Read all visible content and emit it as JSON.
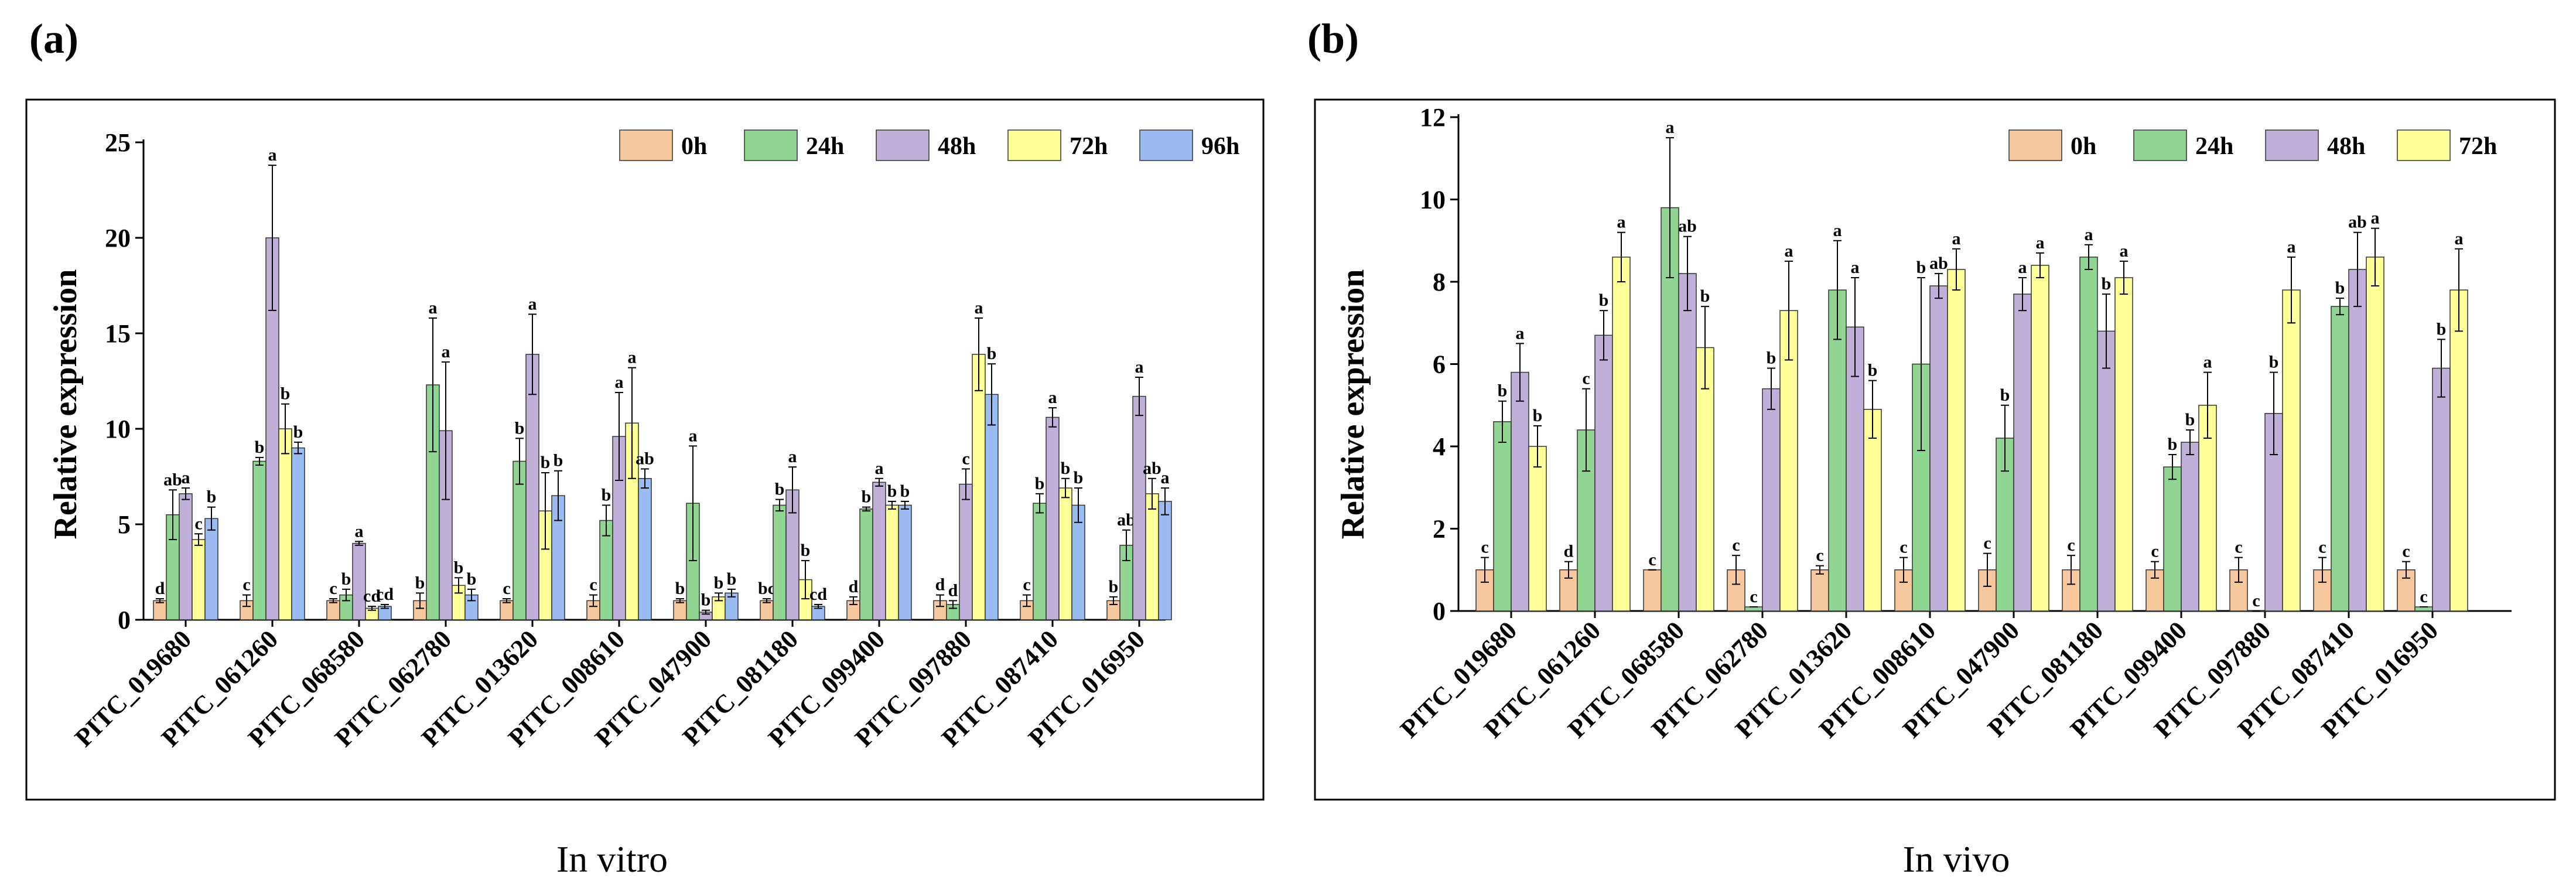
{
  "panels": [
    {
      "letter": "(a)",
      "caption": "In vitro",
      "ylabel": "Relative expression"
    },
    {
      "letter": "(b)",
      "caption": "In vivo",
      "ylabel": "Relative expression"
    }
  ],
  "chart_data": [
    {
      "type": "bar",
      "ylabel": "Relative expression",
      "ylim": [
        0,
        25
      ],
      "yticks": [
        0,
        5,
        10,
        15,
        20,
        25
      ],
      "legend_position": "top-right",
      "categories": [
        "PITC_019680",
        "PITC_061260",
        "PITC_068580",
        "PITC_062780",
        "PITC_013620",
        "PITC_008610",
        "PITC_047900",
        "PITC_081180",
        "PITC_099400",
        "PITC_097880",
        "PITC_087410",
        "PITC_016950"
      ],
      "series": [
        {
          "name": "0h",
          "color": "#f7c79e",
          "values": [
            1.0,
            1.0,
            1.0,
            1.0,
            1.0,
            1.0,
            1.0,
            1.0,
            1.0,
            1.0,
            1.0,
            1.0
          ],
          "errors": [
            0.1,
            0.3,
            0.1,
            0.4,
            0.1,
            0.3,
            0.1,
            0.1,
            0.2,
            0.3,
            0.3,
            0.2
          ],
          "letters": [
            "d",
            "c",
            "c",
            "b",
            "c",
            "c",
            "b",
            "bc",
            "d",
            "d",
            "c",
            "b"
          ]
        },
        {
          "name": "24h",
          "color": "#90d591",
          "values": [
            5.5,
            8.3,
            1.3,
            12.3,
            8.3,
            5.2,
            6.1,
            6.0,
            5.8,
            0.8,
            6.1,
            3.9
          ],
          "errors": [
            1.3,
            0.2,
            0.3,
            3.5,
            1.2,
            0.8,
            3.0,
            0.3,
            0.1,
            0.2,
            0.5,
            0.8
          ],
          "letters": [
            "ab",
            "b",
            "b",
            "a",
            "b",
            "b",
            "a",
            "b",
            "b",
            "d",
            "b",
            "ab"
          ]
        },
        {
          "name": "48h",
          "color": "#c0b0d9",
          "values": [
            6.6,
            20.0,
            4.0,
            9.9,
            13.9,
            9.6,
            0.4,
            6.8,
            7.2,
            7.1,
            10.6,
            11.7
          ],
          "errors": [
            0.3,
            3.8,
            0.1,
            3.6,
            2.1,
            2.3,
            0.1,
            1.2,
            0.2,
            0.8,
            0.5,
            1.0
          ],
          "letters": [
            "a",
            "a",
            "a",
            "a",
            "a",
            "a",
            "b",
            "a",
            "a",
            "c",
            "a",
            "a"
          ]
        },
        {
          "name": "72h",
          "color": "#ffff99",
          "values": [
            4.2,
            10.0,
            0.6,
            1.8,
            5.7,
            10.3,
            1.2,
            2.1,
            6.0,
            13.9,
            6.9,
            6.6
          ],
          "errors": [
            0.3,
            1.3,
            0.1,
            0.4,
            2.0,
            2.9,
            0.2,
            1.0,
            0.2,
            1.9,
            0.5,
            0.8
          ],
          "letters": [
            "c",
            "b",
            "cd",
            "b",
            "b",
            "a",
            "b",
            "b",
            "b",
            "a",
            "b",
            "ab"
          ]
        },
        {
          "name": "96h",
          "color": "#9bbcf2",
          "values": [
            5.3,
            9.0,
            0.7,
            1.3,
            6.5,
            7.4,
            1.4,
            0.7,
            6.0,
            11.8,
            6.0,
            6.2
          ],
          "errors": [
            0.6,
            0.3,
            0.1,
            0.3,
            1.3,
            0.5,
            0.2,
            0.1,
            0.2,
            1.6,
            0.9,
            0.7
          ],
          "letters": [
            "b",
            "b",
            "cd",
            "b",
            "b",
            "ab",
            "b",
            "cd",
            "b",
            "b",
            "b",
            "a"
          ]
        }
      ]
    },
    {
      "type": "bar",
      "ylabel": "Relative expression",
      "ylim": [
        0,
        12
      ],
      "yticks": [
        0,
        2,
        4,
        6,
        8,
        10,
        12
      ],
      "legend_position": "top-right",
      "categories": [
        "PITC_019680",
        "PITC_061260",
        "PITC_068580",
        "PITC_062780",
        "PITC_013620",
        "PITC_008610",
        "PITC_047900",
        "PITC_081180",
        "PITC_099400",
        "PITC_097880",
        "PITC_087410",
        "PITC_016950"
      ],
      "series": [
        {
          "name": "0h",
          "color": "#f7c79e",
          "values": [
            1.0,
            1.0,
            1.0,
            1.0,
            1.0,
            1.0,
            1.0,
            1.0,
            1.0,
            1.0,
            1.0,
            1.0
          ],
          "errors": [
            0.3,
            0.2,
            0.0,
            0.35,
            0.1,
            0.3,
            0.4,
            0.35,
            0.2,
            0.3,
            0.3,
            0.2
          ],
          "letters": [
            "c",
            "d",
            "c",
            "c",
            "c",
            "c",
            "c",
            "c",
            "c",
            "c",
            "c",
            "c"
          ]
        },
        {
          "name": "24h",
          "color": "#90d591",
          "values": [
            4.6,
            4.4,
            9.8,
            0.1,
            7.8,
            6.0,
            4.2,
            8.6,
            3.5,
            0.0,
            7.4,
            0.1
          ],
          "errors": [
            0.5,
            1.0,
            1.7,
            0.0,
            1.2,
            2.1,
            0.8,
            0.3,
            0.3,
            0.0,
            0.2,
            0.0
          ],
          "letters": [
            "b",
            "c",
            "a",
            "c",
            "a",
            "b",
            "b",
            "a",
            "b",
            "c",
            "b",
            "c"
          ]
        },
        {
          "name": "48h",
          "color": "#c0b0d9",
          "values": [
            5.8,
            6.7,
            8.2,
            5.4,
            6.9,
            7.9,
            7.7,
            6.8,
            4.1,
            4.8,
            8.3,
            5.9
          ],
          "errors": [
            0.7,
            0.6,
            0.9,
            0.5,
            1.2,
            0.3,
            0.4,
            0.9,
            0.3,
            1.0,
            0.9,
            0.7
          ],
          "letters": [
            "a",
            "b",
            "ab",
            "b",
            "a",
            "ab",
            "a",
            "b",
            "b",
            "b",
            "ab",
            "b"
          ]
        },
        {
          "name": "72h",
          "color": "#ffff99",
          "values": [
            4.0,
            8.6,
            6.4,
            7.3,
            4.9,
            8.3,
            8.4,
            8.1,
            5.0,
            7.8,
            8.6,
            7.8
          ],
          "errors": [
            0.5,
            0.6,
            1.0,
            1.2,
            0.7,
            0.5,
            0.3,
            0.4,
            0.8,
            0.8,
            0.7,
            1.0
          ],
          "letters": [
            "b",
            "a",
            "b",
            "a",
            "b",
            "a",
            "a",
            "a",
            "a",
            "a",
            "a",
            "a"
          ]
        }
      ]
    }
  ]
}
